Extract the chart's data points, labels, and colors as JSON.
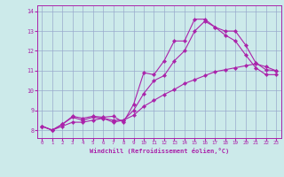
{
  "xlabel": "Windchill (Refroidissement éolien,°C)",
  "xlim": [
    -0.5,
    23.5
  ],
  "ylim": [
    7.6,
    14.3
  ],
  "xticks": [
    0,
    1,
    2,
    3,
    4,
    5,
    6,
    7,
    8,
    9,
    10,
    11,
    12,
    13,
    14,
    15,
    16,
    17,
    18,
    19,
    20,
    21,
    22,
    23
  ],
  "yticks": [
    8,
    9,
    10,
    11,
    12,
    13,
    14
  ],
  "bg_color": "#cceaea",
  "line_color": "#aa22aa",
  "grid_color": "#99aacc",
  "line1_y": [
    8.2,
    8.0,
    8.3,
    8.7,
    8.6,
    8.7,
    8.65,
    8.7,
    8.4,
    9.3,
    10.9,
    10.8,
    11.5,
    12.5,
    12.5,
    13.6,
    13.6,
    13.2,
    13.0,
    13.0,
    12.3,
    11.4,
    11.05,
    11.0
  ],
  "line2_y": [
    8.2,
    8.0,
    8.3,
    8.65,
    8.5,
    8.65,
    8.6,
    8.4,
    8.5,
    9.0,
    9.85,
    10.5,
    10.75,
    11.5,
    12.0,
    13.0,
    13.5,
    13.2,
    12.8,
    12.5,
    11.8,
    11.15,
    10.8,
    10.8
  ],
  "line3_y": [
    8.2,
    8.0,
    8.2,
    8.4,
    8.4,
    8.5,
    8.6,
    8.5,
    8.5,
    8.75,
    9.2,
    9.5,
    9.8,
    10.05,
    10.35,
    10.55,
    10.75,
    10.95,
    11.05,
    11.15,
    11.25,
    11.35,
    11.2,
    11.0
  ]
}
